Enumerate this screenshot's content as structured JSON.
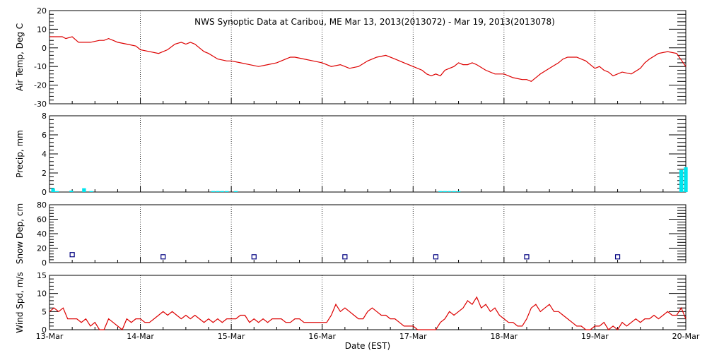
{
  "title": "NWS Synoptic Data at Caribou, ME   Mar 13, 2013(2013072) - Mar 19, 2013(2013078)",
  "xlabel": "Date (EST)",
  "x_ticks": [
    "13-Mar",
    "14-Mar",
    "15-Mar",
    "16-Mar",
    "17-Mar",
    "18-Mar",
    "19-Mar",
    "20-Mar"
  ],
  "colors": {
    "temp": "#dd0000",
    "precip": "#00e5ee",
    "snow": "#000080",
    "wind": "#dd0000",
    "grid": "#000000"
  },
  "chart_data": [
    {
      "type": "line",
      "ylabel": "Air Temp, Deg C",
      "ylim": [
        -30,
        20
      ],
      "y_ticks": [
        20,
        10,
        0,
        -10,
        -20,
        -30
      ],
      "grid": "dotted-vertical",
      "series": [
        {
          "x": [
            0,
            0.1,
            0.14,
            0.18,
            0.25,
            0.32,
            0.38,
            0.45,
            0.55,
            0.6,
            0.65,
            0.7,
            0.75,
            0.85,
            0.95,
            1.0,
            1.1,
            1.2,
            1.3,
            1.38,
            1.45,
            1.5,
            1.55,
            1.6,
            1.65,
            1.7,
            1.75,
            1.85,
            1.95,
            2.0,
            2.1,
            2.2,
            2.3,
            2.4,
            2.5,
            2.6,
            2.65,
            2.7,
            2.8,
            2.9,
            3.0,
            3.1,
            3.2,
            3.25,
            3.3,
            3.4,
            3.5,
            3.6,
            3.7,
            3.8,
            3.9,
            4.0,
            4.1,
            4.15,
            4.2,
            4.25,
            4.3,
            4.35,
            4.4,
            4.45,
            4.5,
            4.55,
            4.6,
            4.65,
            4.7,
            4.8,
            4.9,
            5.0,
            5.05,
            5.1,
            5.2,
            5.25,
            5.3,
            5.4,
            5.5,
            5.6,
            5.65,
            5.7,
            5.8,
            5.9,
            5.95,
            6.0,
            6.05,
            6.1,
            6.15,
            6.2,
            6.3,
            6.4,
            6.5,
            6.55,
            6.6,
            6.7,
            6.8,
            6.9,
            7.0
          ],
          "values": [
            6,
            6,
            6,
            5,
            6,
            3,
            3,
            3,
            4,
            4,
            5,
            4,
            3,
            2,
            1,
            -1,
            -2,
            -3,
            -1,
            2,
            3,
            2,
            3,
            2,
            0,
            -2,
            -3,
            -6,
            -7,
            -7,
            -8,
            -9,
            -10,
            -9,
            -8,
            -6,
            -5,
            -5,
            -6,
            -7,
            -8,
            -10,
            -9,
            -10,
            -11,
            -10,
            -7,
            -5,
            -4,
            -6,
            -8,
            -10,
            -12,
            -14,
            -15,
            -14,
            -15,
            -12,
            -11,
            -10,
            -8,
            -9,
            -9,
            -8,
            -9,
            -12,
            -14,
            -14,
            -15,
            -16,
            -17,
            -17,
            -18,
            -14,
            -11,
            -8,
            -6,
            -5,
            -5,
            -7,
            -9,
            -11,
            -10,
            -12,
            -13,
            -15,
            -13,
            -14,
            -11,
            -8,
            -6,
            -3,
            -2,
            -3,
            -10
          ]
        }
      ]
    },
    {
      "type": "bar",
      "ylabel": "Precip, mm",
      "ylim": [
        0,
        8
      ],
      "y_ticks": [
        8,
        6,
        4,
        2,
        0
      ],
      "grid": "dotted-vertical",
      "series": [
        {
          "x": [
            0.04,
            0.08,
            0.24,
            0.38,
            0.46,
            1.8,
            1.85,
            1.9,
            1.95,
            2.05,
            4.3,
            4.35,
            4.4,
            4.45,
            4.5,
            6.95,
            7.0
          ],
          "values": [
            0.4,
            0.1,
            0.15,
            0.4,
            0.1,
            0.1,
            0.1,
            0.1,
            0.1,
            0.1,
            0.1,
            0.1,
            0.1,
            0.1,
            0.1,
            2.3,
            2.6
          ]
        }
      ]
    },
    {
      "type": "scatter",
      "ylabel": "Snow Dep, cm",
      "ylim": [
        0,
        80
      ],
      "y_ticks": [
        80,
        60,
        40,
        20,
        0
      ],
      "grid": "dotted-vertical",
      "series": [
        {
          "x": [
            0.25,
            1.25,
            2.25,
            3.25,
            4.25,
            5.25,
            6.25
          ],
          "values": [
            11,
            8,
            8,
            8,
            8,
            8,
            8
          ]
        }
      ]
    },
    {
      "type": "line",
      "ylabel": "Wind Spd, m/s",
      "ylim": [
        0,
        15
      ],
      "y_ticks": [
        15,
        10,
        5,
        0
      ],
      "grid": "dotted-vertical",
      "series": [
        {
          "x": [
            0,
            0.05,
            0.1,
            0.15,
            0.2,
            0.25,
            0.3,
            0.35,
            0.4,
            0.45,
            0.5,
            0.55,
            0.6,
            0.65,
            0.7,
            0.75,
            0.8,
            0.85,
            0.9,
            0.95,
            1.0,
            1.05,
            1.1,
            1.15,
            1.2,
            1.25,
            1.3,
            1.35,
            1.4,
            1.45,
            1.5,
            1.55,
            1.6,
            1.65,
            1.7,
            1.75,
            1.8,
            1.85,
            1.9,
            1.95,
            2.0,
            2.05,
            2.1,
            2.15,
            2.2,
            2.25,
            2.3,
            2.35,
            2.4,
            2.45,
            2.5,
            2.55,
            2.6,
            2.65,
            2.7,
            2.75,
            2.8,
            2.85,
            2.9,
            2.95,
            3.0,
            3.05,
            3.1,
            3.15,
            3.2,
            3.25,
            3.3,
            3.35,
            3.4,
            3.45,
            3.5,
            3.55,
            3.6,
            3.65,
            3.7,
            3.75,
            3.8,
            3.85,
            3.9,
            3.95,
            4.0,
            4.05,
            4.1,
            4.15,
            4.2,
            4.25,
            4.3,
            4.35,
            4.4,
            4.45,
            4.5,
            4.55,
            4.6,
            4.65,
            4.7,
            4.75,
            4.8,
            4.85,
            4.9,
            4.95,
            5.0,
            5.05,
            5.1,
            5.15,
            5.2,
            5.25,
            5.3,
            5.35,
            5.4,
            5.45,
            5.5,
            5.55,
            5.6,
            5.65,
            5.7,
            5.75,
            5.8,
            5.85,
            5.9,
            5.95,
            6.0,
            6.05,
            6.1,
            6.15,
            6.2,
            6.25,
            6.3,
            6.35,
            6.4,
            6.45,
            6.5,
            6.55,
            6.6,
            6.65,
            6.7,
            6.75,
            6.8,
            6.85,
            6.9,
            6.95,
            7.0
          ],
          "values": [
            5,
            6,
            5,
            6,
            3,
            3,
            3,
            2,
            3,
            1,
            2,
            0,
            0,
            3,
            2,
            1,
            0,
            3,
            2,
            3,
            3,
            2,
            2,
            3,
            4,
            5,
            4,
            5,
            4,
            3,
            4,
            3,
            4,
            3,
            2,
            3,
            2,
            3,
            2,
            3,
            3,
            3,
            4,
            4,
            2,
            3,
            2,
            3,
            2,
            3,
            3,
            3,
            2,
            2,
            3,
            3,
            2,
            2,
            2,
            2,
            2,
            2,
            4,
            7,
            5,
            6,
            5,
            4,
            3,
            3,
            5,
            6,
            5,
            4,
            4,
            3,
            3,
            2,
            1,
            1,
            1,
            0,
            0,
            0,
            0,
            0,
            2,
            3,
            5,
            4,
            5,
            6,
            8,
            7,
            9,
            6,
            7,
            5,
            6,
            4,
            3,
            2,
            2,
            1,
            1,
            3,
            6,
            7,
            5,
            6,
            7,
            5,
            5,
            4,
            3,
            2,
            1,
            1,
            0,
            0,
            1,
            1,
            2,
            0,
            1,
            0,
            2,
            1,
            2,
            3,
            2,
            3,
            3,
            4,
            3,
            4,
            5,
            4,
            4,
            6,
            3
          ]
        }
      ]
    }
  ]
}
